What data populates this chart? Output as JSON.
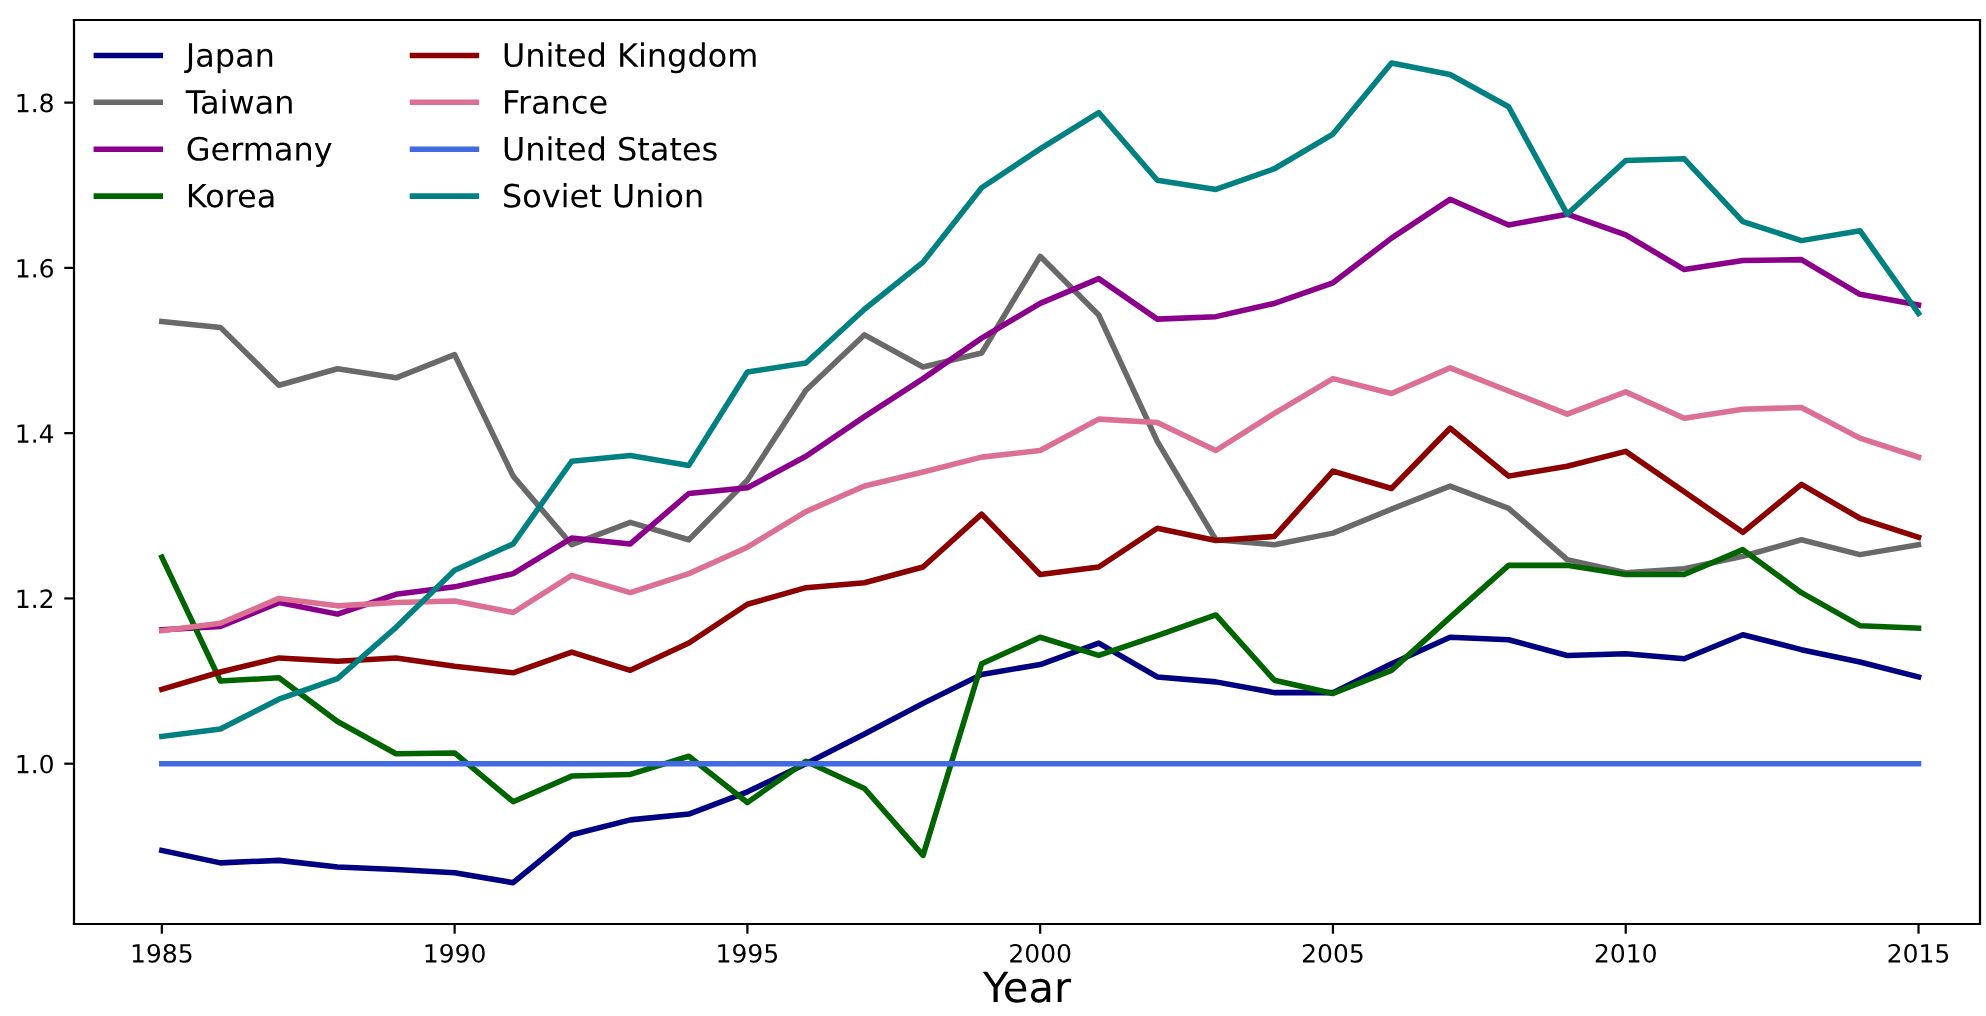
{
  "chart_data": {
    "type": "line",
    "xlabel": "Year",
    "x": [
      1985,
      1986,
      1987,
      1988,
      1989,
      1990,
      1991,
      1992,
      1993,
      1994,
      1995,
      1996,
      1997,
      1998,
      1999,
      2000,
      2001,
      2002,
      2003,
      2004,
      2005,
      2006,
      2007,
      2008,
      2009,
      2010,
      2011,
      2012,
      2013,
      2014,
      2015
    ],
    "series": [
      {
        "name": "Japan",
        "color": "#000080",
        "values": [
          0.895,
          0.88,
          0.883,
          0.875,
          0.872,
          0.868,
          0.856,
          0.914,
          0.932,
          0.939,
          0.966,
          1.0,
          1.036,
          1.073,
          1.108,
          1.12,
          1.146,
          1.105,
          1.099,
          1.086,
          1.086,
          1.121,
          1.153,
          1.15,
          1.131,
          1.133,
          1.127,
          1.156,
          1.138,
          1.123,
          1.105
        ]
      },
      {
        "name": "Taiwan",
        "color": "#696969",
        "values": [
          1.535,
          1.528,
          1.458,
          1.478,
          1.467,
          1.495,
          1.348,
          1.265,
          1.292,
          1.271,
          1.343,
          1.452,
          1.519,
          1.48,
          1.497,
          1.614,
          1.543,
          1.39,
          1.271,
          1.265,
          1.279,
          1.308,
          1.336,
          1.309,
          1.247,
          1.231,
          1.236,
          1.251,
          1.271,
          1.253,
          1.265
        ]
      },
      {
        "name": "Germany",
        "color": "#8b008b",
        "values": [
          1.162,
          1.166,
          1.195,
          1.181,
          1.205,
          1.214,
          1.23,
          1.273,
          1.266,
          1.327,
          1.334,
          1.372,
          1.42,
          1.466,
          1.515,
          1.557,
          1.587,
          1.538,
          1.541,
          1.557,
          1.582,
          1.636,
          1.683,
          1.652,
          1.665,
          1.64,
          1.598,
          1.609,
          1.61,
          1.568,
          1.555
        ]
      },
      {
        "name": "Korea",
        "color": "#006400",
        "values": [
          1.25,
          1.1,
          1.104,
          1.051,
          1.012,
          1.013,
          0.954,
          0.985,
          0.987,
          1.009,
          0.953,
          1.003,
          0.97,
          0.889,
          1.121,
          1.153,
          1.131,
          1.155,
          1.18,
          1.101,
          1.085,
          1.113,
          1.177,
          1.24,
          1.24,
          1.229,
          1.229,
          1.259,
          1.207,
          1.167,
          1.164
        ]
      },
      {
        "name": "United Kingdom",
        "color": "#8b0000",
        "values": [
          1.09,
          1.111,
          1.128,
          1.124,
          1.128,
          1.118,
          1.11,
          1.135,
          1.113,
          1.146,
          1.193,
          1.213,
          1.219,
          1.238,
          1.302,
          1.229,
          1.238,
          1.285,
          1.27,
          1.275,
          1.354,
          1.333,
          1.406,
          1.348,
          1.36,
          1.378,
          1.329,
          1.28,
          1.338,
          1.297,
          1.274
        ]
      },
      {
        "name": "France",
        "color": "#db7093",
        "values": [
          1.161,
          1.17,
          1.2,
          1.191,
          1.195,
          1.197,
          1.183,
          1.228,
          1.207,
          1.23,
          1.262,
          1.305,
          1.336,
          1.353,
          1.371,
          1.379,
          1.417,
          1.413,
          1.379,
          1.424,
          1.466,
          1.448,
          1.479,
          1.451,
          1.423,
          1.45,
          1.418,
          1.429,
          1.431,
          1.394,
          1.371
        ]
      },
      {
        "name": "United States",
        "color": "#4169e1",
        "values": [
          1.0,
          1.0,
          1.0,
          1.0,
          1.0,
          1.0,
          1.0,
          1.0,
          1.0,
          1.0,
          1.0,
          1.0,
          1.0,
          1.0,
          1.0,
          1.0,
          1.0,
          1.0,
          1.0,
          1.0,
          1.0,
          1.0,
          1.0,
          1.0,
          1.0,
          1.0,
          1.0,
          1.0,
          1.0,
          1.0,
          1.0
        ]
      },
      {
        "name": "Soviet Union",
        "color": "#008080",
        "values": [
          1.033,
          1.042,
          1.078,
          1.103,
          1.165,
          1.234,
          1.266,
          1.366,
          1.373,
          1.361,
          1.474,
          1.485,
          1.55,
          1.607,
          1.697,
          1.744,
          1.788,
          1.706,
          1.695,
          1.72,
          1.762,
          1.848,
          1.834,
          1.795,
          1.665,
          1.73,
          1.732,
          1.656,
          1.633,
          1.645,
          1.545
        ]
      }
    ],
    "xlim": [
      1983.5,
      2016.05
    ],
    "ylim": [
      0.806,
      1.9
    ],
    "xticks": [
      1985,
      1990,
      1995,
      2000,
      2005,
      2010,
      2015
    ],
    "yticks": [
      {
        "value": 1,
        "label": "1.0"
      },
      {
        "value": 1.2,
        "label": "1.2"
      },
      {
        "value": 1.4,
        "label": "1.4"
      },
      {
        "value": 1.6,
        "label": "1.6"
      },
      {
        "value": 1.8,
        "label": "1.8"
      }
    ],
    "legend": "top left",
    "grid": false,
    "marker": "none",
    "line_style": "solid"
  }
}
